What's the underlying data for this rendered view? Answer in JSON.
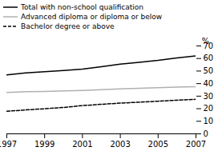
{
  "chart_data": {
    "type": "line",
    "x": [
      1997,
      1998,
      1999,
      2000,
      2001,
      2002,
      2003,
      2004,
      2005,
      2006,
      2007
    ],
    "series": [
      {
        "name": "Total with non-school qualification",
        "color": "#000000",
        "line_style": "solid",
        "values": [
          47.0,
          48.5,
          49.5,
          50.5,
          51.5,
          53.5,
          55.5,
          57.0,
          58.5,
          60.5,
          62.0
        ]
      },
      {
        "name": "Advanced diploma or diploma or below",
        "color": "#b0b0b0",
        "line_style": "solid",
        "values": [
          33.0,
          33.5,
          33.8,
          34.2,
          34.6,
          35.2,
          35.8,
          36.3,
          36.8,
          37.2,
          37.5
        ]
      },
      {
        "name": "Bachelor degree or above",
        "color": "#000000",
        "line_style": "dashed",
        "values": [
          18.0,
          19.0,
          20.0,
          21.0,
          22.5,
          23.5,
          24.5,
          25.2,
          26.0,
          26.8,
          27.5
        ]
      }
    ],
    "ylabel": "%",
    "xlim": [
      1997,
      2007
    ],
    "xticks": [
      1997,
      1999,
      2001,
      2003,
      2005,
      2007
    ],
    "ylim": [
      0,
      70
    ],
    "yticks": [
      0,
      10,
      20,
      30,
      40,
      50,
      60,
      70
    ],
    "grid": false,
    "legend": "upper left"
  }
}
